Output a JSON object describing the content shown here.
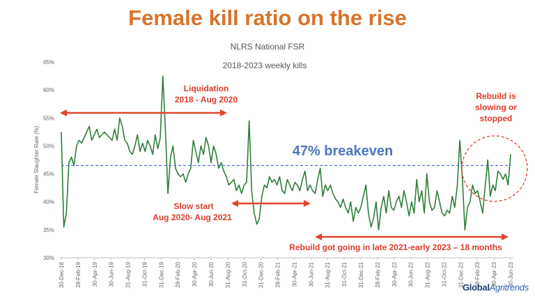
{
  "slide": {
    "headline": "Female kill ratio on the rise",
    "subtitle": "NLRS National FSR",
    "period_note": "2018-2023  weekly kills",
    "logo_main": "Global",
    "logo_accent": "Agritrends"
  },
  "colors": {
    "headline": "#D8732A",
    "line": "#2E7D3A",
    "annotation": "#E03A2A",
    "breakeven": "#4F75C2",
    "arrow": "#E0452B"
  },
  "chart_data": {
    "type": "line",
    "title": "NLRS National FSR",
    "xlabel": "",
    "ylabel": "Female Slaughter Rate (%)",
    "ylim": [
      30,
      65
    ],
    "yticks": [
      "30%",
      "35%",
      "40%",
      "45%",
      "50%",
      "55%",
      "60%",
      "65%"
    ],
    "grid": false,
    "x_ticks": [
      "30-Dec-18",
      "28-Feb-19",
      "30-Apr-19",
      "30-Jun-19",
      "31-Aug-19",
      "31-Oct-19",
      "31-Dec-19",
      "29-Feb-20",
      "30-Apr-20",
      "30-Jun-20",
      "31-Aug-20",
      "31-Oct-20",
      "31-Dec-20",
      "28-Feb-21",
      "30-Apr-21",
      "30-Jun-21",
      "31-Aug-21",
      "31-Oct-21",
      "31-Dec-21",
      "28-Feb-22",
      "30-Apr-22",
      "30-Jun-22",
      "31-Aug-22",
      "31-Oct-22",
      "31-Dec-22",
      "28-Feb-23",
      "30-Apr-23",
      "30-Jun-23"
    ],
    "series": [
      {
        "values": [
          52.5,
          35.5,
          38,
          47,
          48,
          46.5,
          50,
          51,
          50.5,
          51.5,
          52.5,
          53.5,
          51,
          52,
          53,
          51.5,
          52,
          52.5,
          52,
          51.5,
          51,
          53,
          51,
          55,
          53.5,
          51,
          50.5,
          49,
          48.5,
          50,
          52,
          49,
          50.5,
          49,
          51,
          50,
          48.5,
          52,
          49.5,
          51.5,
          62.5,
          53,
          41.5,
          48,
          50,
          46,
          45,
          44.5,
          45,
          43.5,
          45,
          46,
          51,
          49,
          47,
          50,
          48.5,
          51.5,
          50,
          47,
          50,
          48.5,
          46,
          47,
          45.5,
          44.5,
          43,
          43.5,
          44,
          42,
          43,
          41.5,
          43,
          43.5,
          54.5,
          42,
          38,
          36,
          37,
          41,
          43,
          42.5,
          44.5,
          43.5,
          44,
          43,
          44.5,
          42,
          41.5,
          44,
          43,
          42,
          43.5,
          43,
          42,
          44,
          45.5,
          42,
          43,
          42,
          41.5,
          44,
          46,
          41,
          43,
          42,
          43,
          41.5,
          40.5,
          40,
          39,
          40.5,
          39,
          38,
          40,
          36.5,
          39,
          38,
          39,
          41,
          43,
          38,
          35.5,
          37,
          40,
          35,
          39,
          41,
          38,
          42,
          39,
          38.5,
          40,
          41,
          39,
          42,
          40,
          37.5,
          40,
          38,
          44,
          40,
          42,
          38,
          45,
          40,
          38.5,
          39,
          42,
          40,
          38,
          37.5,
          38.5,
          38,
          41,
          39,
          43,
          51,
          44,
          35,
          39,
          40,
          43,
          41.5,
          42,
          40,
          38,
          43,
          47.5,
          41,
          43,
          42,
          45.5,
          45,
          44,
          45,
          43,
          48.5
        ]
      }
    ],
    "annotations": [
      {
        "text_lines": [
          "Liquidation",
          "2018 - Aug 2020"
        ]
      },
      {
        "text_lines": [
          "Slow start",
          "Aug 2020- Aug  2021"
        ]
      },
      {
        "text_lines": [
          "Rebuild got going in late 2021-early  2023 – 18 months"
        ]
      },
      {
        "text_lines": [
          "Rebuild is",
          "slowing or",
          "stopped"
        ]
      },
      {
        "text_lines": [
          "47% breakeven"
        ],
        "value": 46.5
      }
    ]
  }
}
